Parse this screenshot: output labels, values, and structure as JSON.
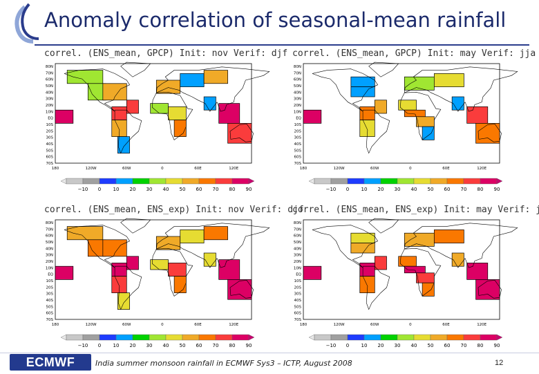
{
  "slide": {
    "title": "Anomaly correlation of seasonal-mean rainfall",
    "footer_text": "India summer monsoon rainfall in ECMWF Sys3 – ICTP, August 2008",
    "page_number": "12",
    "logo_text": "ECMWF"
  },
  "colorbar_scale": {
    "labels": [
      "−10",
      "0",
      "10",
      "20",
      "30",
      "40",
      "50",
      "60",
      "70",
      "80",
      "90"
    ],
    "colors": [
      "#c8c8c8",
      "#a0a0a0",
      "#1e3cff",
      "#00a0ff",
      "#00d200",
      "#a0e632",
      "#e6dc32",
      "#f0aa28",
      "#fa7800",
      "#fa3c3c",
      "#dc0064"
    ]
  },
  "chart_data": [
    {
      "type": "heatmap",
      "title": "correl. (ENS_mean, GPCP) Init: nov Verif: djf",
      "lat_labels": [
        "80N",
        "70N",
        "60N",
        "50N",
        "40N",
        "30N",
        "20N",
        "10N",
        "EQ",
        "10S",
        "20S",
        "30S",
        "40S",
        "50S",
        "60S",
        "70S"
      ],
      "lon_labels": [
        "180",
        "120W",
        "60W",
        "0",
        "60E",
        "120E"
      ],
      "regions": [
        {
          "lon": [
            -160,
            -100
          ],
          "lat": [
            50,
            70
          ],
          "value": 30
        },
        {
          "lon": [
            -125,
            -95
          ],
          "lat": [
            25,
            50
          ],
          "value": 30
        },
        {
          "lon": [
            -100,
            -60
          ],
          "lat": [
            25,
            50
          ],
          "value": 50
        },
        {
          "lon": [
            -60,
            -40
          ],
          "lat": [
            5,
            25
          ],
          "value": 70
        },
        {
          "lon": [
            -85,
            -60
          ],
          "lat": [
            -5,
            15
          ],
          "value": 70
        },
        {
          "lon": [
            -85,
            -60
          ],
          "lat": [
            -30,
            -5
          ],
          "value": 50
        },
        {
          "lon": [
            -75,
            -55
          ],
          "lat": [
            -55,
            -30
          ],
          "value": 10
        },
        {
          "lon": [
            -10,
            30
          ],
          "lat": [
            35,
            55
          ],
          "value": 50
        },
        {
          "lon": [
            30,
            70
          ],
          "lat": [
            45,
            65
          ],
          "value": 10
        },
        {
          "lon": [
            70,
            110
          ],
          "lat": [
            50,
            70
          ],
          "value": 50
        },
        {
          "lon": [
            -20,
            10
          ],
          "lat": [
            5,
            20
          ],
          "value": 30
        },
        {
          "lon": [
            10,
            40
          ],
          "lat": [
            -5,
            15
          ],
          "value": 40
        },
        {
          "lon": [
            20,
            40
          ],
          "lat": [
            -30,
            -5
          ],
          "value": 60
        },
        {
          "lon": [
            70,
            90
          ],
          "lat": [
            10,
            30
          ],
          "value": 10
        },
        {
          "lon": [
            95,
            130
          ],
          "lat": [
            -10,
            20
          ],
          "value": 80
        },
        {
          "lon": [
            110,
            150
          ],
          "lat": [
            -40,
            -10
          ],
          "value": 70
        },
        {
          "lon": [
            -180,
            -150
          ],
          "lat": [
            -10,
            10
          ],
          "value": 90
        }
      ],
      "vmin": -10,
      "vmax": 90
    },
    {
      "type": "heatmap",
      "title": "correl. (ENS_mean, GPCP) Init: may Verif: jja",
      "lat_labels": [
        "80N",
        "70N",
        "60N",
        "50N",
        "40N",
        "30N",
        "20N",
        "10N",
        "EQ",
        "10S",
        "20S",
        "30S",
        "40S",
        "50S",
        "60S",
        "70S"
      ],
      "lon_labels": [
        "180",
        "120W",
        "60W",
        "0",
        "60E",
        "120E"
      ],
      "regions": [
        {
          "lon": [
            -100,
            -60
          ],
          "lat": [
            45,
            60
          ],
          "value": 10
        },
        {
          "lon": [
            -100,
            -60
          ],
          "lat": [
            30,
            45
          ],
          "value": 10
        },
        {
          "lon": [
            -60,
            -40
          ],
          "lat": [
            5,
            25
          ],
          "value": 50
        },
        {
          "lon": [
            -85,
            -60
          ],
          "lat": [
            -5,
            15
          ],
          "value": 60
        },
        {
          "lon": [
            -85,
            -60
          ],
          "lat": [
            -30,
            -5
          ],
          "value": 40
        },
        {
          "lon": [
            -10,
            40
          ],
          "lat": [
            40,
            60
          ],
          "value": 30
        },
        {
          "lon": [
            40,
            90
          ],
          "lat": [
            45,
            65
          ],
          "value": 40
        },
        {
          "lon": [
            -20,
            10
          ],
          "lat": [
            10,
            25
          ],
          "value": 40
        },
        {
          "lon": [
            -10,
            25
          ],
          "lat": [
            0,
            10
          ],
          "value": 60
        },
        {
          "lon": [
            10,
            40
          ],
          "lat": [
            -15,
            0
          ],
          "value": 50
        },
        {
          "lon": [
            20,
            40
          ],
          "lat": [
            -35,
            -15
          ],
          "value": 10
        },
        {
          "lon": [
            70,
            90
          ],
          "lat": [
            10,
            30
          ],
          "value": 10
        },
        {
          "lon": [
            95,
            130
          ],
          "lat": [
            -10,
            15
          ],
          "value": 70
        },
        {
          "lon": [
            110,
            150
          ],
          "lat": [
            -40,
            -10
          ],
          "value": 60
        },
        {
          "lon": [
            -180,
            -150
          ],
          "lat": [
            -10,
            10
          ],
          "value": 80
        }
      ],
      "vmin": -10,
      "vmax": 90
    },
    {
      "type": "heatmap",
      "title": "correl. (ENS_mean, ENS_exp) Init: nov Verif: djf",
      "lat_labels": [
        "80N",
        "70N",
        "60N",
        "50N",
        "40N",
        "30N",
        "20N",
        "10N",
        "EQ",
        "10S",
        "20S",
        "30S",
        "40S",
        "50S",
        "60S",
        "70S"
      ],
      "lon_labels": [
        "180",
        "120W",
        "60W",
        "0",
        "60E",
        "120E"
      ],
      "regions": [
        {
          "lon": [
            -160,
            -100
          ],
          "lat": [
            50,
            70
          ],
          "value": 50
        },
        {
          "lon": [
            -125,
            -95
          ],
          "lat": [
            25,
            50
          ],
          "value": 60
        },
        {
          "lon": [
            -100,
            -60
          ],
          "lat": [
            25,
            50
          ],
          "value": 60
        },
        {
          "lon": [
            -60,
            -40
          ],
          "lat": [
            5,
            25
          ],
          "value": 80
        },
        {
          "lon": [
            -85,
            -60
          ],
          "lat": [
            -5,
            15
          ],
          "value": 80
        },
        {
          "lon": [
            -85,
            -60
          ],
          "lat": [
            -30,
            -5
          ],
          "value": 70
        },
        {
          "lon": [
            -75,
            -55
          ],
          "lat": [
            -55,
            -30
          ],
          "value": 40
        },
        {
          "lon": [
            -10,
            30
          ],
          "lat": [
            35,
            55
          ],
          "value": 50
        },
        {
          "lon": [
            30,
            70
          ],
          "lat": [
            45,
            65
          ],
          "value": 40
        },
        {
          "lon": [
            70,
            110
          ],
          "lat": [
            50,
            70
          ],
          "value": 60
        },
        {
          "lon": [
            -20,
            10
          ],
          "lat": [
            5,
            20
          ],
          "value": 40
        },
        {
          "lon": [
            10,
            40
          ],
          "lat": [
            -5,
            15
          ],
          "value": 70
        },
        {
          "lon": [
            20,
            40
          ],
          "lat": [
            -30,
            -5
          ],
          "value": 60
        },
        {
          "lon": [
            70,
            90
          ],
          "lat": [
            10,
            30
          ],
          "value": 40
        },
        {
          "lon": [
            95,
            130
          ],
          "lat": [
            -10,
            20
          ],
          "value": 90
        },
        {
          "lon": [
            110,
            150
          ],
          "lat": [
            -40,
            -10
          ],
          "value": 80
        },
        {
          "lon": [
            -180,
            -150
          ],
          "lat": [
            -10,
            10
          ],
          "value": 90
        }
      ],
      "vmin": -10,
      "vmax": 90
    },
    {
      "type": "heatmap",
      "title": "correl. (ENS_mean, ENS_exp) Init: may Verif: jja",
      "lat_labels": [
        "80N",
        "70N",
        "60N",
        "50N",
        "40N",
        "30N",
        "20N",
        "10N",
        "EQ",
        "10S",
        "20S",
        "30S",
        "40S",
        "50S",
        "60S",
        "70S"
      ],
      "lon_labels": [
        "180",
        "120W",
        "60W",
        "0",
        "60E",
        "120E"
      ],
      "regions": [
        {
          "lon": [
            -100,
            -60
          ],
          "lat": [
            45,
            60
          ],
          "value": 40
        },
        {
          "lon": [
            -100,
            -60
          ],
          "lat": [
            30,
            45
          ],
          "value": 50
        },
        {
          "lon": [
            -60,
            -40
          ],
          "lat": [
            5,
            25
          ],
          "value": 70
        },
        {
          "lon": [
            -85,
            -60
          ],
          "lat": [
            -5,
            15
          ],
          "value": 80
        },
        {
          "lon": [
            -85,
            -60
          ],
          "lat": [
            -30,
            -5
          ],
          "value": 60
        },
        {
          "lon": [
            -10,
            40
          ],
          "lat": [
            40,
            60
          ],
          "value": 50
        },
        {
          "lon": [
            40,
            90
          ],
          "lat": [
            45,
            65
          ],
          "value": 60
        },
        {
          "lon": [
            -20,
            10
          ],
          "lat": [
            10,
            25
          ],
          "value": 60
        },
        {
          "lon": [
            -10,
            25
          ],
          "lat": [
            0,
            10
          ],
          "value": 80
        },
        {
          "lon": [
            10,
            40
          ],
          "lat": [
            -15,
            0
          ],
          "value": 70
        },
        {
          "lon": [
            20,
            40
          ],
          "lat": [
            -35,
            -15
          ],
          "value": 60
        },
        {
          "lon": [
            70,
            90
          ],
          "lat": [
            10,
            30
          ],
          "value": 50
        },
        {
          "lon": [
            95,
            130
          ],
          "lat": [
            -10,
            15
          ],
          "value": 90
        },
        {
          "lon": [
            110,
            150
          ],
          "lat": [
            -40,
            -10
          ],
          "value": 80
        },
        {
          "lon": [
            -180,
            -150
          ],
          "lat": [
            -10,
            10
          ],
          "value": 90
        }
      ],
      "vmin": -10,
      "vmax": 90
    }
  ]
}
